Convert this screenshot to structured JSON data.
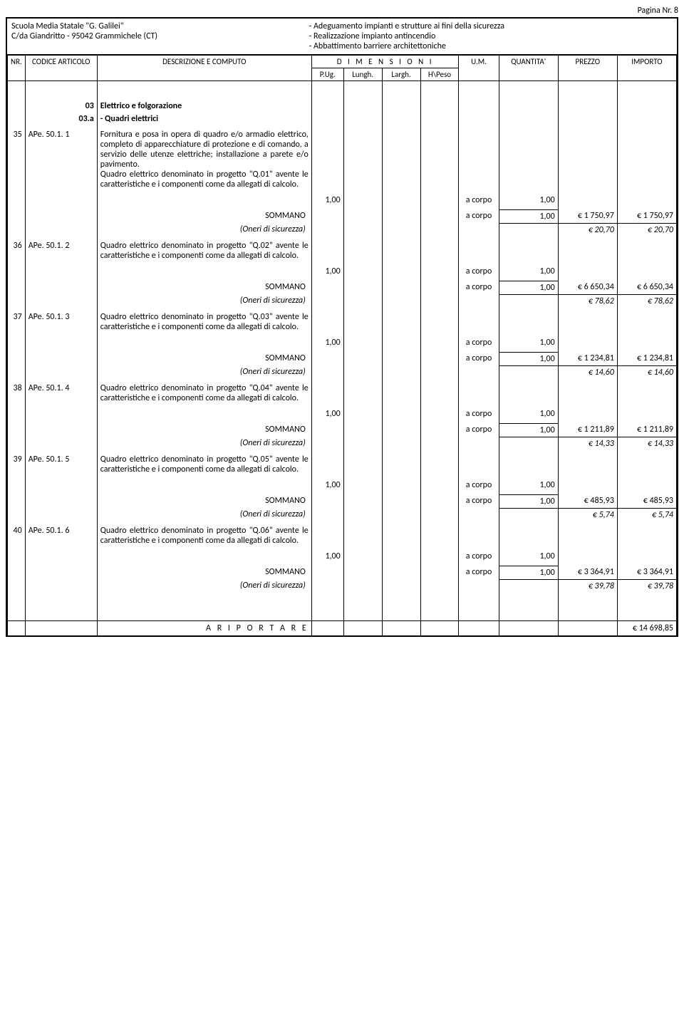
{
  "page_number": "Pagina Nr. 8",
  "header": {
    "left_line1": "Scuola Media Statale \"G. Galilei\"",
    "left_line2": "C/da Giandritto - 95042 Grammichele (CT)",
    "right_line1": "- Adeguamento impianti e strutture ai fini della sicurezza",
    "right_line2": "- Realizzazione impianto antincendio",
    "right_line3": "- Abbattimento barriere architettoniche"
  },
  "columns": {
    "nr": "NR.",
    "codice": "CODICE ARTICOLO",
    "descrizione": "DESCRIZIONE E COMPUTO",
    "dimensioni": "D I M E N S I O N I",
    "pug": "P.Ug.",
    "lungh": "Lungh.",
    "largh": "Largh.",
    "hpeso": "H\\Peso",
    "um": "U.M.",
    "quantita": "QUANTITA'",
    "prezzo": "PREZZO",
    "importo": "IMPORTO"
  },
  "section": {
    "code": "03",
    "title": "Elettrico e folgorazione",
    "sub_code": "03.a",
    "sub_title": "- Quadri elettrici"
  },
  "labels": {
    "sommano": "SOMMANO",
    "oneri": "(Oneri di sicurezza)",
    "riportare": "A R I P O R T A R E"
  },
  "items": [
    {
      "nr": "35",
      "codice": "APe. 50.1. 1",
      "desc": "Fornitura e posa in opera di quadro e/o armadio elettrico, completo di apparecchiature di protezione e di comando, a servizio delle utenze elettriche; installazione a parete e/o pavimento.\nQuadro elettrico denominato in progetto \"Q.01\" avente le caratteristiche e i componenti come da allegati di calcolo.",
      "pug": "1,00",
      "um": "a corpo",
      "qta": "1,00",
      "sommano_um": "a corpo",
      "sommano_qta": "1,00",
      "prezzo": "€ 1 750,97",
      "importo": "€ 1 750,97",
      "oneri_prezzo": "€ 20,70",
      "oneri_importo": "€ 20,70"
    },
    {
      "nr": "36",
      "codice": "APe. 50.1. 2",
      "desc": "Quadro elettrico denominato in progetto \"Q.02\" avente le caratteristiche e i componenti come da allegati di calcolo.",
      "pug": "1,00",
      "um": "a corpo",
      "qta": "1,00",
      "sommano_um": "a corpo",
      "sommano_qta": "1,00",
      "prezzo": "€ 6 650,34",
      "importo": "€ 6 650,34",
      "oneri_prezzo": "€ 78,62",
      "oneri_importo": "€ 78,62"
    },
    {
      "nr": "37",
      "codice": "APe. 50.1. 3",
      "desc": "Quadro elettrico denominato in progetto \"Q.03\" avente le caratteristiche e i componenti come da allegati di calcolo.",
      "pug": "1,00",
      "um": "a corpo",
      "qta": "1,00",
      "sommano_um": "a corpo",
      "sommano_qta": "1,00",
      "prezzo": "€ 1 234,81",
      "importo": "€ 1 234,81",
      "oneri_prezzo": "€ 14,60",
      "oneri_importo": "€ 14,60"
    },
    {
      "nr": "38",
      "codice": "APe. 50.1. 4",
      "desc": "Quadro elettrico denominato in progetto \"Q.04\" avente le caratteristiche e i componenti come da allegati di calcolo.",
      "pug": "1,00",
      "um": "a corpo",
      "qta": "1,00",
      "sommano_um": "a corpo",
      "sommano_qta": "1,00",
      "prezzo": "€ 1 211,89",
      "importo": "€ 1 211,89",
      "oneri_prezzo": "€ 14,33",
      "oneri_importo": "€ 14,33"
    },
    {
      "nr": "39",
      "codice": "APe. 50.1. 5",
      "desc": "Quadro elettrico denominato in progetto \"Q.05\" avente le caratteristiche e i componenti come da allegati di calcolo.",
      "pug": "1,00",
      "um": "a corpo",
      "qta": "1,00",
      "sommano_um": "a corpo",
      "sommano_qta": "1,00",
      "prezzo": "€ 485,93",
      "importo": "€ 485,93",
      "oneri_prezzo": "€ 5,74",
      "oneri_importo": "€ 5,74"
    },
    {
      "nr": "40",
      "codice": "APe. 50.1. 6",
      "desc": "Quadro elettrico denominato in progetto \"Q.06\" avente le caratteristiche e i componenti come da allegati di calcolo.",
      "pug": "1,00",
      "um": "a corpo",
      "qta": "1,00",
      "sommano_um": "a corpo",
      "sommano_qta": "1,00",
      "prezzo": "€ 3 364,91",
      "importo": "€ 3 364,91",
      "oneri_prezzo": "€ 39,78",
      "oneri_importo": "€ 39,78"
    }
  ],
  "riportare_total": "€ 14 698,85"
}
